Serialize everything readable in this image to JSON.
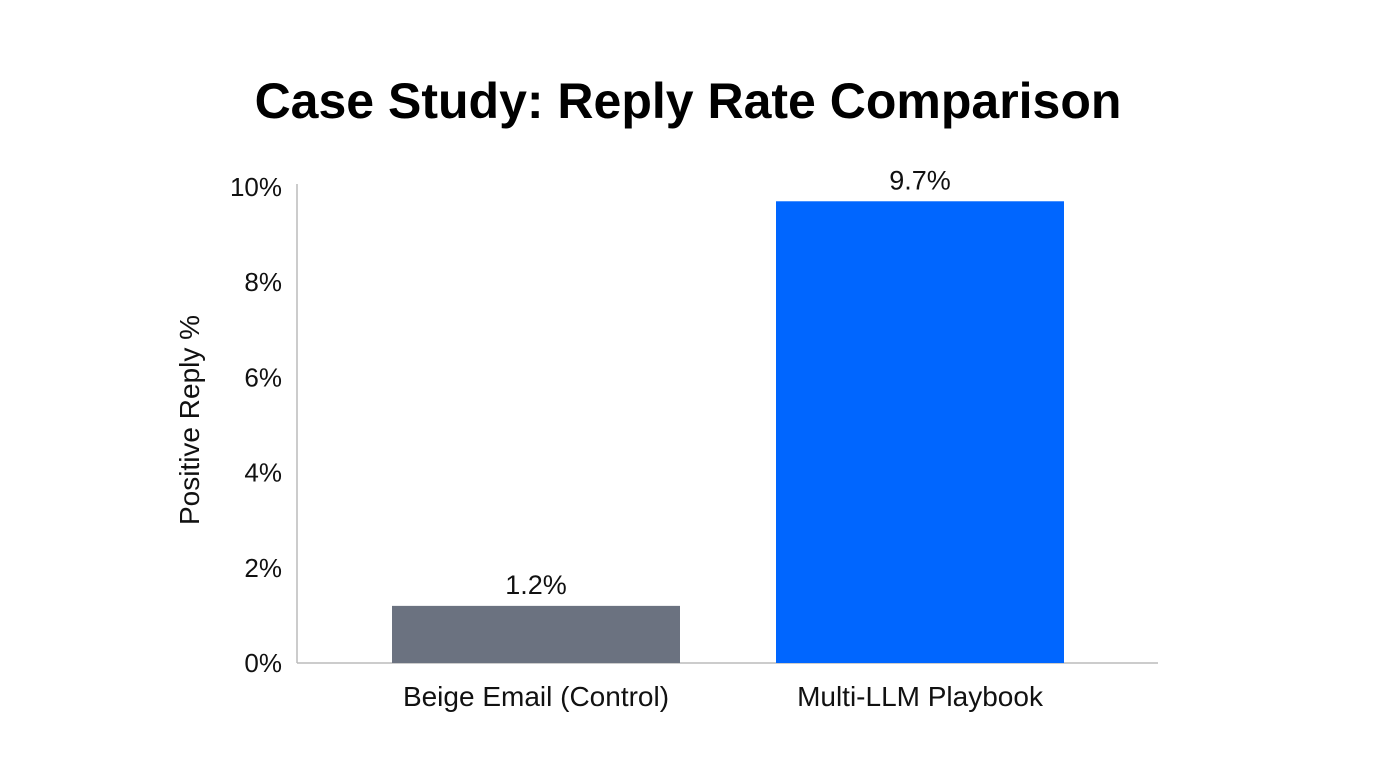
{
  "chart_data": {
    "type": "bar",
    "title": "Case Study: Reply Rate Comparison",
    "xlabel": "",
    "ylabel": "Positive Reply %",
    "ylim": [
      0,
      10
    ],
    "yticks": [
      0,
      2,
      4,
      6,
      8,
      10
    ],
    "ytick_labels": [
      "0%",
      "2%",
      "4%",
      "6%",
      "8%",
      "10%"
    ],
    "categories": [
      "Beige Email (Control)",
      "Multi-LLM Playbook"
    ],
    "values": [
      1.2,
      9.7
    ],
    "data_labels": [
      "1.2%",
      "9.7%"
    ],
    "colors": [
      "#6b7280",
      "#0066ff"
    ],
    "axis_color": "#bbbbbb",
    "grid": false,
    "legend": "none"
  }
}
